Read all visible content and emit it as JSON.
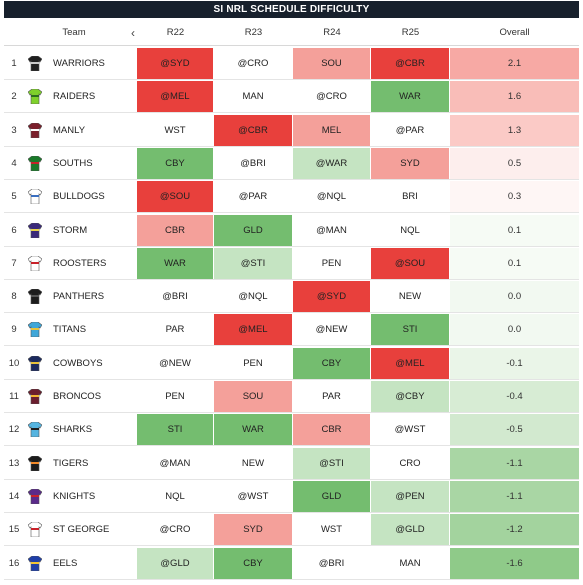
{
  "title": "SI NRL SCHEDULE DIFFICULTY",
  "columns": {
    "team": "Team",
    "r22": "R22",
    "r23": "R23",
    "r24": "R24",
    "r25": "R25",
    "overall": "Overall"
  },
  "colors": {
    "hard_strong": "#e8403c",
    "hard_mid": "#f4a09a",
    "neutral": "#ffffff",
    "easy_light": "#c5e4c2",
    "easy_strong": "#74bd6f"
  },
  "rows": [
    {
      "rank": "1",
      "team": "WARRIORS",
      "jersey": "#1f1f1f",
      "jersey_trim": "#c8c8c8",
      "r22": {
        "v": "@SYD",
        "c": "hard_strong"
      },
      "r23": {
        "v": "@CRO",
        "c": "neutral"
      },
      "r24": {
        "v": "SOU",
        "c": "hard_mid"
      },
      "r25": {
        "v": "@CBR",
        "c": "hard_strong"
      },
      "overall": "2.1",
      "overall_color": "#f7a9a4"
    },
    {
      "rank": "2",
      "team": "RAIDERS",
      "jersey": "#7fd12b",
      "jersey_trim": "#2d6d1e",
      "r22": {
        "v": "@MEL",
        "c": "hard_strong"
      },
      "r23": {
        "v": "MAN",
        "c": "neutral"
      },
      "r24": {
        "v": "@CRO",
        "c": "neutral"
      },
      "r25": {
        "v": "WAR",
        "c": "easy_strong"
      },
      "overall": "1.6",
      "overall_color": "#f9bdb8"
    },
    {
      "rank": "3",
      "team": "MANLY",
      "jersey": "#7a1f2b",
      "jersey_trim": "#ffffff",
      "r22": {
        "v": "WST",
        "c": "neutral"
      },
      "r23": {
        "v": "@CBR",
        "c": "hard_strong"
      },
      "r24": {
        "v": "MEL",
        "c": "hard_mid"
      },
      "r25": {
        "v": "@PAR",
        "c": "neutral"
      },
      "overall": "1.3",
      "overall_color": "#fbcac6"
    },
    {
      "rank": "4",
      "team": "SOUTHS",
      "jersey": "#1a7a2a",
      "jersey_trim": "#c8222a",
      "r22": {
        "v": "CBY",
        "c": "easy_strong"
      },
      "r23": {
        "v": "@BRI",
        "c": "neutral"
      },
      "r24": {
        "v": "@WAR",
        "c": "easy_light"
      },
      "r25": {
        "v": "SYD",
        "c": "hard_mid"
      },
      "overall": "0.5",
      "overall_color": "#fdeeed"
    },
    {
      "rank": "5",
      "team": "BULLDOGS",
      "jersey": "#ffffff",
      "jersey_trim": "#3a6fc0",
      "r22": {
        "v": "@SOU",
        "c": "hard_strong"
      },
      "r23": {
        "v": "@PAR",
        "c": "neutral"
      },
      "r24": {
        "v": "@NQL",
        "c": "neutral"
      },
      "r25": {
        "v": "BRI",
        "c": "neutral"
      },
      "overall": "0.3",
      "overall_color": "#fef6f5"
    },
    {
      "rank": "6",
      "team": "STORM",
      "jersey": "#3b2a7a",
      "jersey_trim": "#e8d44a",
      "r22": {
        "v": "CBR",
        "c": "hard_mid"
      },
      "r23": {
        "v": "GLD",
        "c": "easy_strong"
      },
      "r24": {
        "v": "@MAN",
        "c": "neutral"
      },
      "r25": {
        "v": "NQL",
        "c": "neutral"
      },
      "overall": "0.1",
      "overall_color": "#f6fbf5"
    },
    {
      "rank": "7",
      "team": "ROOSTERS",
      "jersey": "#ffffff",
      "jersey_trim": "#c8222a",
      "r22": {
        "v": "WAR",
        "c": "easy_strong"
      },
      "r23": {
        "v": "@STI",
        "c": "easy_light"
      },
      "r24": {
        "v": "PEN",
        "c": "neutral"
      },
      "r25": {
        "v": "@SOU",
        "c": "hard_strong"
      },
      "overall": "0.1",
      "overall_color": "#f6fbf5"
    },
    {
      "rank": "8",
      "team": "PANTHERS",
      "jersey": "#1c1c1c",
      "jersey_trim": "#555555",
      "r22": {
        "v": "@BRI",
        "c": "neutral"
      },
      "r23": {
        "v": "@NQL",
        "c": "neutral"
      },
      "r24": {
        "v": "@SYD",
        "c": "hard_strong"
      },
      "r25": {
        "v": "NEW",
        "c": "neutral"
      },
      "overall": "0.0",
      "overall_color": "#f2f9f1"
    },
    {
      "rank": "9",
      "team": "TITANS",
      "jersey": "#3fa6d8",
      "jersey_trim": "#e8c23a",
      "r22": {
        "v": "PAR",
        "c": "neutral"
      },
      "r23": {
        "v": "@MEL",
        "c": "hard_strong"
      },
      "r24": {
        "v": "@NEW",
        "c": "neutral"
      },
      "r25": {
        "v": "STI",
        "c": "easy_strong"
      },
      "overall": "0.0",
      "overall_color": "#f2f9f1"
    },
    {
      "rank": "10",
      "team": "COWBOYS",
      "jersey": "#1c2a5e",
      "jersey_trim": "#e8c23a",
      "r22": {
        "v": "@NEW",
        "c": "neutral"
      },
      "r23": {
        "v": "PEN",
        "c": "neutral"
      },
      "r24": {
        "v": "CBY",
        "c": "easy_strong"
      },
      "r25": {
        "v": "@MEL",
        "c": "hard_strong"
      },
      "overall": "-0.1",
      "overall_color": "#eaf5e8"
    },
    {
      "rank": "11",
      "team": "BRONCOS",
      "jersey": "#6b1e2e",
      "jersey_trim": "#f2b632",
      "r22": {
        "v": "PEN",
        "c": "neutral"
      },
      "r23": {
        "v": "SOU",
        "c": "hard_mid"
      },
      "r24": {
        "v": "PAR",
        "c": "neutral"
      },
      "r25": {
        "v": "@CBY",
        "c": "easy_light"
      },
      "overall": "-0.4",
      "overall_color": "#d7ecd4"
    },
    {
      "rank": "12",
      "team": "SHARKS",
      "jersey": "#55b4e0",
      "jersey_trim": "#1c1c1c",
      "r22": {
        "v": "STI",
        "c": "easy_strong"
      },
      "r23": {
        "v": "WAR",
        "c": "easy_strong"
      },
      "r24": {
        "v": "CBR",
        "c": "hard_mid"
      },
      "r25": {
        "v": "@WST",
        "c": "neutral"
      },
      "overall": "-0.5",
      "overall_color": "#d2e9cf"
    },
    {
      "rank": "13",
      "team": "TIGERS",
      "jersey": "#1c1c1c",
      "jersey_trim": "#f28a2a",
      "r22": {
        "v": "@MAN",
        "c": "neutral"
      },
      "r23": {
        "v": "NEW",
        "c": "neutral"
      },
      "r24": {
        "v": "@STI",
        "c": "easy_light"
      },
      "r25": {
        "v": "CRO",
        "c": "neutral"
      },
      "overall": "-1.1",
      "overall_color": "#a9d6a4"
    },
    {
      "rank": "14",
      "team": "KNIGHTS",
      "jersey": "#5a2a8a",
      "jersey_trim": "#c8222a",
      "r22": {
        "v": "NQL",
        "c": "neutral"
      },
      "r23": {
        "v": "@WST",
        "c": "neutral"
      },
      "r24": {
        "v": "GLD",
        "c": "easy_strong"
      },
      "r25": {
        "v": "@PEN",
        "c": "easy_light"
      },
      "overall": "-1.1",
      "overall_color": "#a9d6a4"
    },
    {
      "rank": "15",
      "team": "ST GEORGE",
      "jersey": "#ffffff",
      "jersey_trim": "#c8222a",
      "r22": {
        "v": "@CRO",
        "c": "neutral"
      },
      "r23": {
        "v": "SYD",
        "c": "hard_mid"
      },
      "r24": {
        "v": "WST",
        "c": "neutral"
      },
      "r25": {
        "v": "@GLD",
        "c": "easy_light"
      },
      "overall": "-1.2",
      "overall_color": "#a3d39e"
    },
    {
      "rank": "16",
      "team": "EELS",
      "jersey": "#1f3fa8",
      "jersey_trim": "#f2c632",
      "r22": {
        "v": "@GLD",
        "c": "easy_light"
      },
      "r23": {
        "v": "CBY",
        "c": "easy_strong"
      },
      "r24": {
        "v": "@BRI",
        "c": "neutral"
      },
      "r25": {
        "v": "MAN",
        "c": "neutral"
      },
      "overall": "-1.6",
      "overall_color": "#8fca89"
    }
  ],
  "icons": {
    "collapse": "chevron-left-icon",
    "team": "jersey-icon"
  }
}
